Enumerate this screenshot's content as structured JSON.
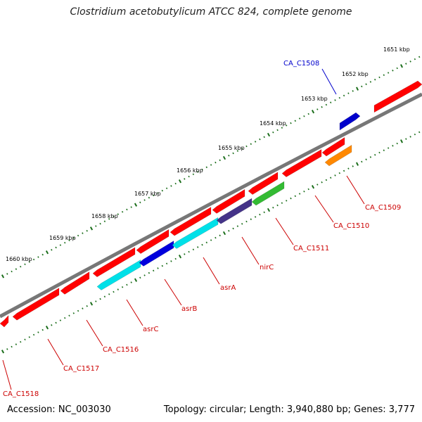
{
  "title": "Clostridium acetobutylicum ATCC 824, complete genome",
  "footer": {
    "accession": "Accession: NC_003030",
    "summary": "Topology: circular; Length: 3,940,880 bp; Genes: 3,777"
  },
  "scale_labels": [
    "1651 kbp",
    "1652 kbp",
    "1653 kbp",
    "1654 kbp",
    "1655 kbp",
    "1656 kbp",
    "1657 kbp",
    "1658 kbp",
    "1659 kbp",
    "1660 kbp"
  ],
  "genes": [
    {
      "id": "CA_C1508",
      "strand": "forward",
      "color": "#0000cc"
    },
    {
      "id": "CA_C1509",
      "strand": "reverse",
      "color": "#ff8800"
    },
    {
      "id": "CA_C1510",
      "strand": "reverse",
      "color": "#ff0000"
    },
    {
      "id": "CA_C1511",
      "strand": "reverse",
      "color": "#33bb33"
    },
    {
      "id": "nirC",
      "strand": "reverse",
      "color": "#443388"
    },
    {
      "id": "asrA",
      "strand": "reverse",
      "color": "#00e0e8"
    },
    {
      "id": "asrB",
      "strand": "reverse",
      "color": "#0000dd"
    },
    {
      "id": "asrC",
      "strand": "reverse",
      "color": "#00e0e8"
    },
    {
      "id": "CA_C1516",
      "strand": "reverse",
      "color": "#ff0000"
    },
    {
      "id": "CA_C1517",
      "strand": "reverse",
      "color": "#ff0000"
    },
    {
      "id": "CA_C1518",
      "strand": "reverse",
      "color": "#ff0000"
    }
  ],
  "colors": {
    "backbone": "#777777",
    "cds_red": "#ff0000",
    "tick_green": "#1b6e1b",
    "label_red": "#cc0000",
    "label_blue": "#0000cc"
  }
}
